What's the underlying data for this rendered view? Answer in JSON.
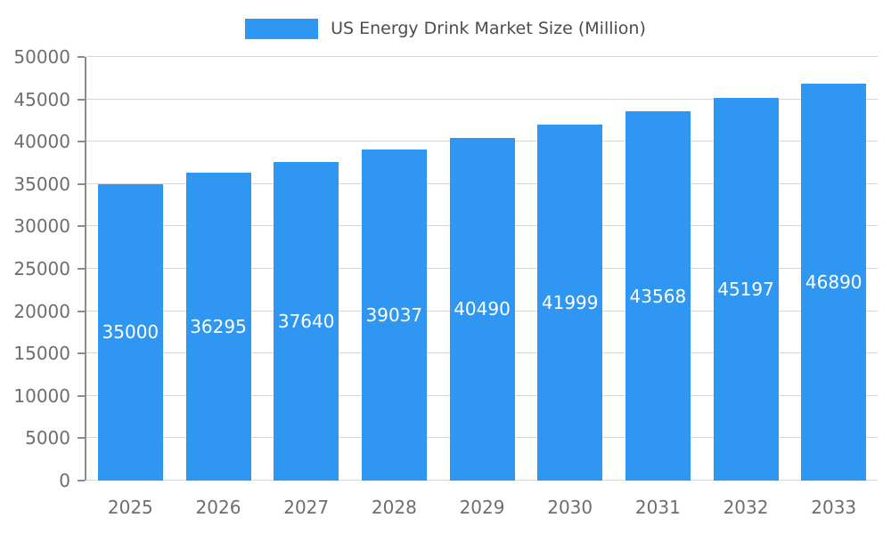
{
  "chart_data": {
    "type": "bar",
    "title": "US Energy Drink Market Size (Million)",
    "categories": [
      "2025",
      "2026",
      "2027",
      "2028",
      "2029",
      "2030",
      "2031",
      "2032",
      "2033"
    ],
    "values": [
      35000,
      36295,
      37640,
      39037,
      40490,
      41999,
      43568,
      45197,
      46890
    ],
    "xlabel": "",
    "ylabel": "",
    "ylim": [
      0,
      50000
    ],
    "ytick_step": 5000,
    "grid": true,
    "legend_position": "top",
    "value_labels_inside_bars": true,
    "colors": {
      "bar": "#2F96F2",
      "bar_value_label": "#FFFFFF",
      "axis_text": "#6E6E6E",
      "legend_text": "#4D4D4D",
      "gridline": "#D6D6D6",
      "axis_line": "#8C8C8C",
      "background": "#FFFFFF"
    }
  }
}
